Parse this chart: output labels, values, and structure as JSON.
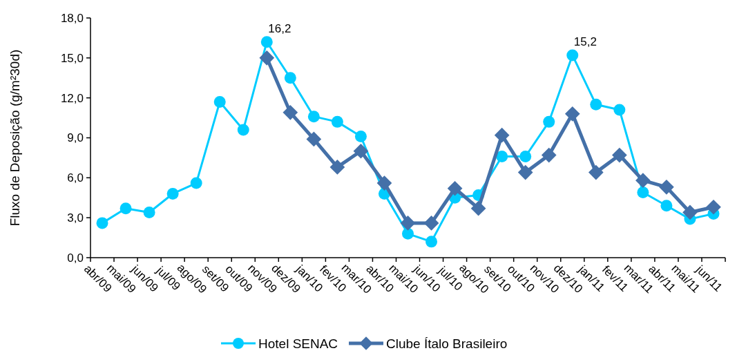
{
  "chart_data": {
    "type": "line",
    "ylabel": "Fluxo de Deposição (g/m²30d)",
    "categories": [
      "abr/09",
      "mai/09",
      "jun/09",
      "jul/09",
      "ago/09",
      "set/09",
      "out/09",
      "nov/09",
      "dez/09",
      "jan/10",
      "fev/10",
      "mar/10",
      "abr/10",
      "mai/10",
      "jun/10",
      "jul/10",
      "ago/10",
      "set/10",
      "out/10",
      "nov/10",
      "dez/10",
      "jan/11",
      "fev/11",
      "mar/11",
      "abr/11",
      "mai/11",
      "jun/11"
    ],
    "series": [
      {
        "name": "Hotel SENAC",
        "color": "#00ccff",
        "marker": "circle",
        "values": [
          2.6,
          3.7,
          3.4,
          4.8,
          5.6,
          11.7,
          9.6,
          16.2,
          13.5,
          10.6,
          10.2,
          9.1,
          4.8,
          1.8,
          1.2,
          4.5,
          4.7,
          7.6,
          7.6,
          10.2,
          15.2,
          11.5,
          11.1,
          4.9,
          3.9,
          2.9,
          3.3
        ]
      },
      {
        "name": "Clube Ítalo Brasileiro",
        "color": "#4470a8",
        "marker": "diamond",
        "values": [
          null,
          null,
          null,
          null,
          null,
          null,
          null,
          15.0,
          10.9,
          8.9,
          6.8,
          8.0,
          5.6,
          2.6,
          2.6,
          5.2,
          3.7,
          9.2,
          6.4,
          7.7,
          10.8,
          6.4,
          7.7,
          5.8,
          5.3,
          3.4,
          3.8
        ]
      }
    ],
    "ylim": [
      0,
      18
    ],
    "yticks": [
      {
        "value": 0,
        "label": "0,0"
      },
      {
        "value": 3,
        "label": "3,0"
      },
      {
        "value": 6,
        "label": "6,0"
      },
      {
        "value": 9,
        "label": "9,0"
      },
      {
        "value": 12,
        "label": "12,0"
      },
      {
        "value": 15,
        "label": "15,0"
      },
      {
        "value": 18,
        "label": "18,0"
      }
    ],
    "annotations": [
      {
        "text": "16,2",
        "x": "nov/09",
        "y": 16.2
      },
      {
        "text": "15,2",
        "x": "dez/10",
        "y": 15.2
      }
    ],
    "grid": false,
    "legend": "bottom",
    "line_style": "solid"
  }
}
